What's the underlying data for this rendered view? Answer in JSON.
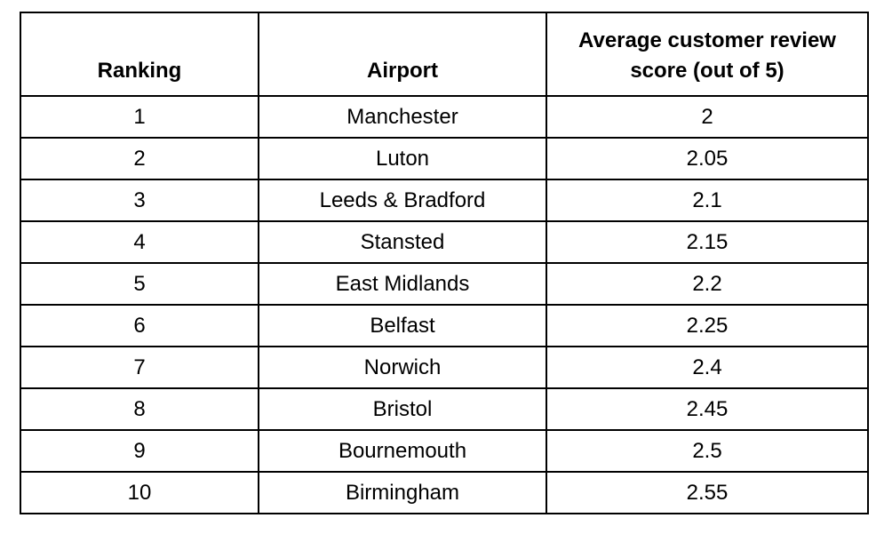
{
  "table": {
    "headers": {
      "ranking": "Ranking",
      "airport": "Airport",
      "score": "Average customer review score (out of 5)"
    },
    "rows": [
      {
        "ranking": "1",
        "airport": "Manchester",
        "score": "2"
      },
      {
        "ranking": "2",
        "airport": "Luton",
        "score": "2.05"
      },
      {
        "ranking": "3",
        "airport": "Leeds & Bradford",
        "score": "2.1"
      },
      {
        "ranking": "4",
        "airport": "Stansted",
        "score": "2.15"
      },
      {
        "ranking": "5",
        "airport": "East Midlands",
        "score": "2.2"
      },
      {
        "ranking": "6",
        "airport": "Belfast",
        "score": "2.25"
      },
      {
        "ranking": "7",
        "airport": "Norwich",
        "score": "2.4"
      },
      {
        "ranking": "8",
        "airport": "Bristol",
        "score": "2.45"
      },
      {
        "ranking": "9",
        "airport": "Bournemouth",
        "score": "2.5"
      },
      {
        "ranking": "10",
        "airport": "Birmingham",
        "score": "2.55"
      }
    ]
  }
}
